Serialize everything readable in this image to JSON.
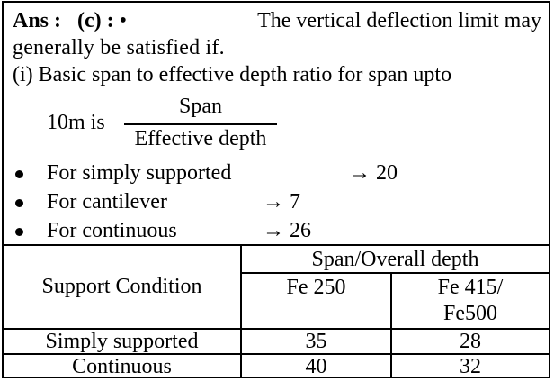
{
  "answer": {
    "prefix": "Ans :",
    "option": "(c) :",
    "bullet_glyph": "•",
    "line1_rest": "The vertical deflection limit may",
    "line2": "generally be satisfied if.",
    "line3": "(i) Basic span to effective depth ratio for span upto",
    "fraction_prefix": "10m is",
    "fraction_numerator": "Span",
    "fraction_denominator": "Effective depth",
    "arrow": "→",
    "bullets": [
      {
        "label": "For simply supported",
        "value": "20"
      },
      {
        "label": "For cantilever",
        "value": "7"
      },
      {
        "label": "For continuous",
        "value": "26"
      }
    ]
  },
  "table": {
    "header_support": "Support Condition",
    "header_group": "Span/Overall depth",
    "header_col1": "Fe 250",
    "header_col2_line1": "Fe 415/",
    "header_col2_line2": "Fe500",
    "rows": [
      {
        "condition": "Simply supported",
        "fe250": "35",
        "fe415": "28"
      },
      {
        "condition": "Continuous",
        "fe250": "40",
        "fe415": "32"
      }
    ]
  }
}
